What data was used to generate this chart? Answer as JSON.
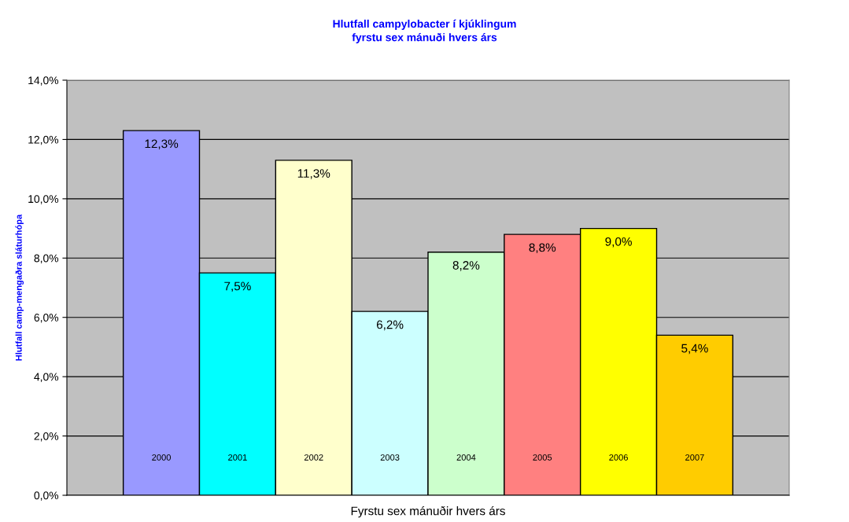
{
  "chart_data": {
    "type": "bar",
    "title": "Hlutfall campylobacter í kjúklingum\nfyrstu sex mánuði hvers árs",
    "xlabel": "Fyrstu sex mánuðir hvers árs",
    "ylabel": "Hlutfall camp-mengaðra sláturhópa",
    "categories": [
      "2000",
      "2001",
      "2002",
      "2003",
      "2004",
      "2005",
      "2006",
      "2007"
    ],
    "values": [
      12.3,
      7.5,
      11.3,
      6.2,
      8.2,
      8.8,
      9.0,
      5.4
    ],
    "value_labels": [
      "12,3%",
      "7,5%",
      "11,3%",
      "6,2%",
      "8,2%",
      "8,8%",
      "9,0%",
      "5,4%"
    ],
    "colors": [
      "#9999ff",
      "#00ffff",
      "#ffffcc",
      "#ccffff",
      "#ccffcc",
      "#ff8080",
      "#ffff00",
      "#ffcc00"
    ],
    "ylim": [
      0,
      14
    ],
    "yticks": [
      {
        "value": 0,
        "label": "0,0%"
      },
      {
        "value": 2,
        "label": "2,0%"
      },
      {
        "value": 4,
        "label": "4,0%"
      },
      {
        "value": 6,
        "label": "6,0%"
      },
      {
        "value": 8,
        "label": "8,0%"
      },
      {
        "value": 10,
        "label": "10,0%"
      },
      {
        "value": 12,
        "label": "12,0%"
      },
      {
        "value": 14,
        "label": "14,0%"
      }
    ],
    "grid": "y",
    "tick_labels": "y"
  }
}
